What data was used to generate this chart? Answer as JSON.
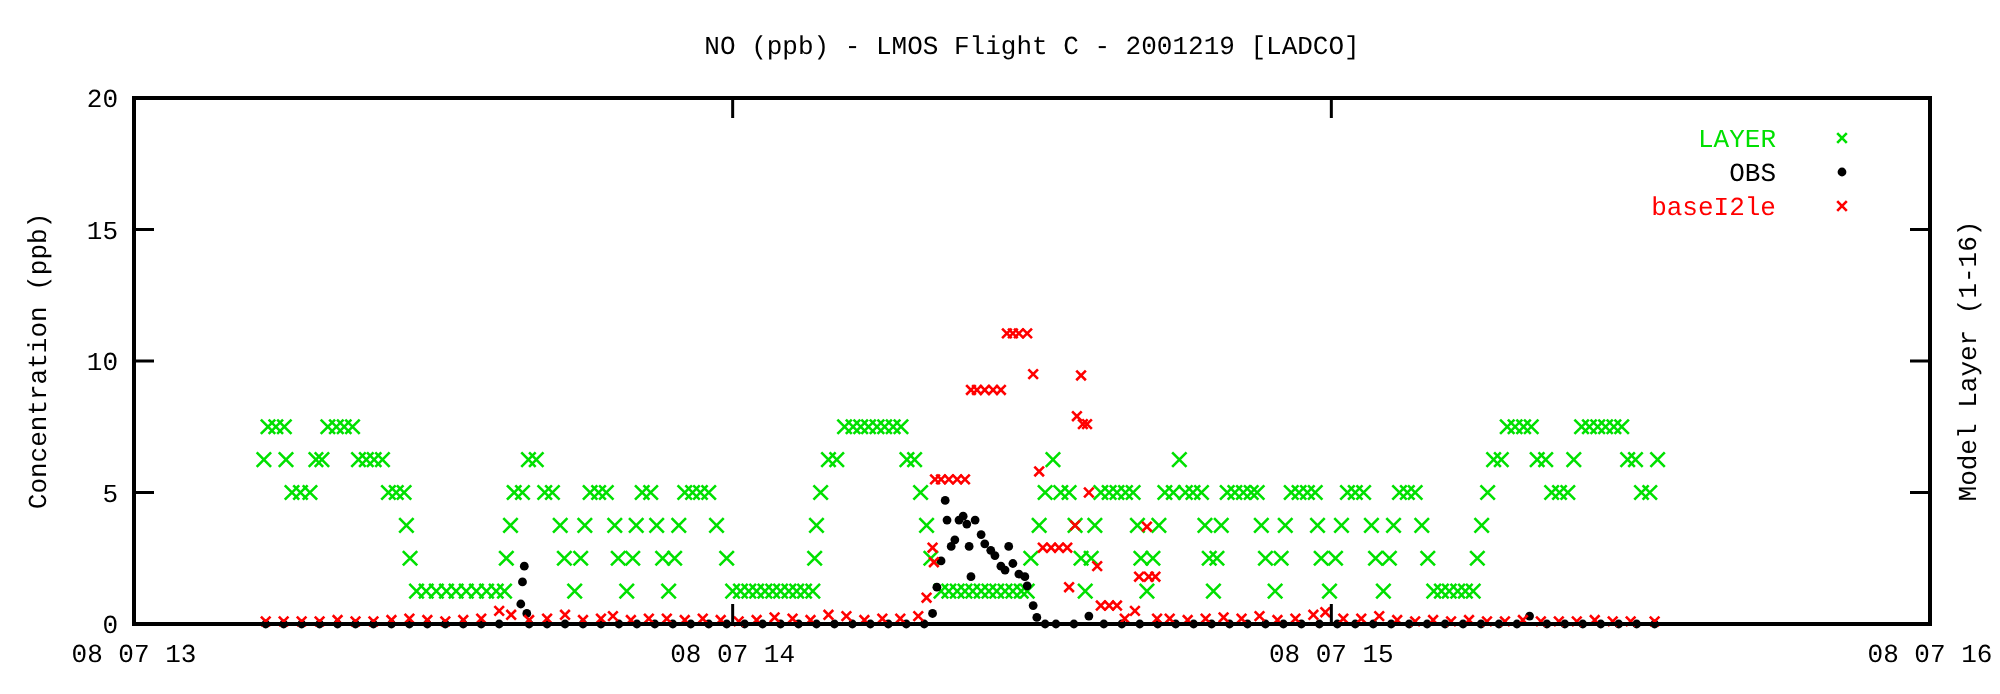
{
  "chart_data": {
    "type": "scatter",
    "title": "NO (ppb) - LMOS Flight C - 2001219 [LADCO]",
    "ylabel": "Concentration (ppb)",
    "y2label": "Model Layer (1-16)",
    "xlim": [
      "2001-08-07T13:00",
      "2001-08-07T16:00"
    ],
    "xticks": [
      {
        "value": "2001-08-07T13:00",
        "label": "08 07 13"
      },
      {
        "value": "2001-08-07T14:00",
        "label": "08 07 14"
      },
      {
        "value": "2001-08-07T15:00",
        "label": "08 07 15"
      },
      {
        "value": "2001-08-07T16:00",
        "label": "08 07 16"
      }
    ],
    "ylim": [
      0,
      20
    ],
    "yticks": [
      0,
      5,
      10,
      15,
      20
    ],
    "legend": "top right",
    "series": [
      {
        "name": "LAYER",
        "color": "#00e000",
        "marker": "cross",
        "x": [
          "2001-08-07T13:13:01",
          "2001-08-07T13:13:26",
          "2001-08-07T13:14:13",
          "2001-08-07T13:15:04",
          "2001-08-07T13:15:14",
          "2001-08-07T13:15:50",
          "2001-08-07T13:16:41",
          "2001-08-07T13:17:38",
          "2001-08-07T13:18:14",
          "2001-08-07T13:18:50",
          "2001-08-07T13:19:26",
          "2001-08-07T13:20:17",
          "2001-08-07T13:21:04",
          "2001-08-07T13:21:54",
          "2001-08-07T13:22:30",
          "2001-08-07T13:23:17",
          "2001-08-07T13:24:04",
          "2001-08-07T13:24:54",
          "2001-08-07T13:25:30",
          "2001-08-07T13:26:17",
          "2001-08-07T13:27:04",
          "2001-08-07T13:27:18",
          "2001-08-07T13:27:40",
          "2001-08-07T13:28:19",
          "2001-08-07T13:29:17",
          "2001-08-07T13:30:18",
          "2001-08-07T13:31:19",
          "2001-08-07T13:32:17",
          "2001-08-07T13:33:18",
          "2001-08-07T13:34:19",
          "2001-08-07T13:35:20",
          "2001-08-07T13:36:18",
          "2001-08-07T13:37:08",
          "2001-08-07T13:37:19",
          "2001-08-07T13:37:44",
          "2001-08-07T13:38:06",
          "2001-08-07T13:38:56",
          "2001-08-07T13:39:32",
          "2001-08-07T13:40:19",
          "2001-08-07T13:41:10",
          "2001-08-07T13:41:56",
          "2001-08-07T13:42:43",
          "2001-08-07T13:43:08",
          "2001-08-07T13:44:10",
          "2001-08-07T13:44:46",
          "2001-08-07T13:45:11",
          "2001-08-07T13:45:43",
          "2001-08-07T13:46:34",
          "2001-08-07T13:47:20",
          "2001-08-07T13:48:11",
          "2001-08-07T13:48:32",
          "2001-08-07T13:49:23",
          "2001-08-07T13:49:59",
          "2001-08-07T13:50:20",
          "2001-08-07T13:50:56",
          "2001-08-07T13:51:47",
          "2001-08-07T13:52:23",
          "2001-08-07T13:52:59",
          "2001-08-07T13:53:35",
          "2001-08-07T13:54:11",
          "2001-08-07T13:54:36",
          "2001-08-07T13:55:12",
          "2001-08-07T13:55:59",
          "2001-08-07T13:56:46",
          "2001-08-07T13:57:36",
          "2001-08-07T13:58:23",
          "2001-08-07T13:59:24",
          "2001-08-07T14:00:00",
          "2001-08-07T14:00:47",
          "2001-08-07T14:01:37",
          "2001-08-07T14:02:24",
          "2001-08-07T14:03:14",
          "2001-08-07T14:04:01",
          "2001-08-07T14:04:48",
          "2001-08-07T14:05:38",
          "2001-08-07T14:06:25",
          "2001-08-07T14:07:12",
          "2001-08-07T14:08:02",
          "2001-08-07T14:08:13",
          "2001-08-07T14:08:24",
          "2001-08-07T14:08:49",
          "2001-08-07T14:09:36",
          "2001-08-07T14:10:26",
          "2001-08-07T14:11:13",
          "2001-08-07T14:12:04",
          "2001-08-07T14:12:50",
          "2001-08-07T14:13:37",
          "2001-08-07T14:14:28",
          "2001-08-07T14:15:14",
          "2001-08-07T14:16:05",
          "2001-08-07T14:16:52",
          "2001-08-07T14:17:28",
          "2001-08-07T14:18:14",
          "2001-08-07T14:18:50",
          "2001-08-07T14:19:26",
          "2001-08-07T14:19:52",
          "2001-08-07T14:20:53",
          "2001-08-07T14:21:40",
          "2001-08-07T14:22:30",
          "2001-08-07T14:23:17",
          "2001-08-07T14:24:04",
          "2001-08-07T14:24:54",
          "2001-08-07T14:25:41",
          "2001-08-07T14:26:28",
          "2001-08-07T14:27:18",
          "2001-08-07T14:28:05",
          "2001-08-07T14:28:55",
          "2001-08-07T14:29:31",
          "2001-08-07T14:29:53",
          "2001-08-07T14:30:43",
          "2001-08-07T14:31:19",
          "2001-08-07T14:32:06",
          "2001-08-07T14:32:53",
          "2001-08-07T14:33:43",
          "2001-08-07T14:34:19",
          "2001-08-07T14:34:55",
          "2001-08-07T14:35:20",
          "2001-08-07T14:35:56",
          "2001-08-07T14:36:18",
          "2001-08-07T14:36:54",
          "2001-08-07T14:37:44",
          "2001-08-07T14:38:31",
          "2001-08-07T14:39:22",
          "2001-08-07T14:40:08",
          "2001-08-07T14:40:34",
          "2001-08-07T14:40:55",
          "2001-08-07T14:41:31",
          "2001-08-07T14:42:07",
          "2001-08-07T14:42:43",
          "2001-08-07T14:43:19",
          "2001-08-07T14:44:10",
          "2001-08-07T14:44:46",
          "2001-08-07T14:45:22",
          "2001-08-07T14:46:08",
          "2001-08-07T14:46:59",
          "2001-08-07T14:47:20",
          "2001-08-07T14:47:46",
          "2001-08-07T14:48:11",
          "2001-08-07T14:48:32",
          "2001-08-07T14:48:58",
          "2001-08-07T14:49:34",
          "2001-08-07T14:50:20",
          "2001-08-07T14:51:11",
          "2001-08-07T14:51:58",
          "2001-08-07T14:52:34",
          "2001-08-07T14:52:59",
          "2001-08-07T14:53:24",
          "2001-08-07T14:54:22",
          "2001-08-07T14:54:58",
          "2001-08-07T14:55:23",
          "2001-08-07T14:55:59",
          "2001-08-07T14:56:46",
          "2001-08-07T14:57:36",
          "2001-08-07T14:58:23",
          "2001-08-07T14:58:37",
          "2001-08-07T14:58:59",
          "2001-08-07T14:59:49",
          "2001-08-07T15:00:25",
          "2001-08-07T15:01:01",
          "2001-08-07T15:01:37",
          "2001-08-07T15:02:24",
          "2001-08-07T15:03:14",
          "2001-08-07T15:04:01",
          "2001-08-07T15:04:26",
          "2001-08-07T15:05:13",
          "2001-08-07T15:05:49",
          "2001-08-07T15:06:14",
          "2001-08-07T15:06:50",
          "2001-08-07T15:07:37",
          "2001-08-07T15:08:24",
          "2001-08-07T15:09:04",
          "2001-08-07T15:09:40",
          "2001-08-07T15:10:16",
          "2001-08-07T15:11:02",
          "2001-08-07T15:11:49",
          "2001-08-07T15:12:40",
          "2001-08-07T15:13:26",
          "2001-08-07T15:14:13",
          "2001-08-07T15:14:38",
          "2001-08-07T15:15:04",
          "2001-08-07T15:15:40",
          "2001-08-07T15:16:16",
          "2001-08-07T15:17:02",
          "2001-08-07T15:17:38",
          "2001-08-07T15:18:25",
          "2001-08-07T15:19:16",
          "2001-08-07T15:20:02",
          "2001-08-07T15:20:38",
          "2001-08-07T15:21:29",
          "2001-08-07T15:22:05",
          "2001-08-07T15:22:52",
          "2001-08-07T15:23:42",
          "2001-08-07T15:24:18",
          "2001-08-07T15:25:05",
          "2001-08-07T15:25:52",
          "2001-08-07T15:26:42",
          "2001-08-07T15:27:29",
          "2001-08-07T15:28:19",
          "2001-08-07T15:29:06",
          "2001-08-07T15:29:42",
          "2001-08-07T15:30:29",
          "2001-08-07T15:31:05",
          "2001-08-07T15:31:55",
          "2001-08-07T15:32:42"
        ],
        "values": [
          6.25,
          7.5,
          7.5,
          7.5,
          6.25,
          5,
          5,
          5,
          6.25,
          6.25,
          7.5,
          7.5,
          7.5,
          7.5,
          6.25,
          6.25,
          6.25,
          6.25,
          5,
          5,
          5,
          3.75,
          2.5,
          1.25,
          1.25,
          1.25,
          1.25,
          1.25,
          1.25,
          1.25,
          1.25,
          1.25,
          1.25,
          2.5,
          3.75,
          5,
          5,
          6.25,
          6.25,
          5,
          5,
          3.75,
          2.5,
          1.25,
          2.5,
          3.75,
          5,
          5,
          5,
          3.75,
          2.5,
          1.25,
          2.5,
          3.75,
          5,
          5,
          3.75,
          2.5,
          1.25,
          2.5,
          3.75,
          5,
          5,
          5,
          5,
          3.75,
          2.5,
          1.25,
          1.25,
          1.25,
          1.25,
          1.25,
          1.25,
          1.25,
          1.25,
          1.25,
          1.25,
          1.25,
          2.5,
          3.75,
          5,
          6.25,
          6.25,
          7.5,
          7.5,
          7.5,
          7.5,
          7.5,
          7.5,
          7.5,
          7.5,
          6.25,
          6.25,
          5,
          3.75,
          2.5,
          1.25,
          1.25,
          1.25,
          1.25,
          1.25,
          1.25,
          1.25,
          1.25,
          1.25,
          1.25,
          1.25,
          1.25,
          2.5,
          3.75,
          5,
          6.25,
          5,
          5,
          3.75,
          2.5,
          1.25,
          2.5,
          3.75,
          5,
          5,
          5,
          5,
          5,
          3.75,
          2.5,
          1.25,
          2.5,
          3.75,
          5,
          5,
          6.25,
          5,
          5,
          5,
          3.75,
          2.5,
          1.25,
          2.5,
          3.75,
          5,
          5,
          5,
          5,
          5,
          3.75,
          2.5,
          1.25,
          2.5,
          3.75,
          5,
          5,
          5,
          5,
          3.75,
          2.5,
          1.25,
          2.5,
          3.75,
          5,
          5,
          5,
          3.75,
          2.5,
          1.25,
          2.5,
          3.75,
          5,
          5,
          5,
          3.75,
          2.5,
          1.25,
          1.25,
          1.25,
          1.25,
          1.25,
          1.25,
          2.5,
          3.75,
          5,
          6.25,
          6.25,
          7.5,
          7.5,
          7.5,
          7.5,
          6.25,
          6.25,
          5,
          5,
          5,
          6.25,
          7.5,
          7.5,
          7.5,
          7.5,
          7.5,
          7.5,
          6.25,
          6.25,
          5,
          5,
          6.25
        ]
      },
      {
        "name": "OBS",
        "color": "#000000",
        "marker": "circle",
        "x": [
          "2001-08-07T13:13:12",
          "2001-08-07T13:15:00",
          "2001-08-07T13:16:48",
          "2001-08-07T13:18:36",
          "2001-08-07T13:20:24",
          "2001-08-07T13:22:12",
          "2001-08-07T13:24:00",
          "2001-08-07T13:25:48",
          "2001-08-07T13:27:36",
          "2001-08-07T13:29:24",
          "2001-08-07T13:31:12",
          "2001-08-07T13:33:00",
          "2001-08-07T13:34:48",
          "2001-08-07T13:36:36",
          "2001-08-07T13:38:46",
          "2001-08-07T13:38:56",
          "2001-08-07T13:39:07",
          "2001-08-07T13:39:22",
          "2001-08-07T13:39:36",
          "2001-08-07T13:41:24",
          "2001-08-07T13:43:12",
          "2001-08-07T13:45:00",
          "2001-08-07T13:46:48",
          "2001-08-07T13:48:36",
          "2001-08-07T13:50:24",
          "2001-08-07T13:52:12",
          "2001-08-07T13:54:00",
          "2001-08-07T13:55:48",
          "2001-08-07T13:57:36",
          "2001-08-07T13:59:24",
          "2001-08-07T14:01:12",
          "2001-08-07T14:03:00",
          "2001-08-07T14:04:48",
          "2001-08-07T14:06:36",
          "2001-08-07T14:08:24",
          "2001-08-07T14:10:12",
          "2001-08-07T14:12:00",
          "2001-08-07T14:13:48",
          "2001-08-07T14:15:36",
          "2001-08-07T14:17:24",
          "2001-08-07T14:19:12",
          "2001-08-07T14:20:02",
          "2001-08-07T14:20:28",
          "2001-08-07T14:20:53",
          "2001-08-07T14:21:18",
          "2001-08-07T14:21:29",
          "2001-08-07T14:21:54",
          "2001-08-07T14:22:16",
          "2001-08-07T14:22:41",
          "2001-08-07T14:23:06",
          "2001-08-07T14:23:28",
          "2001-08-07T14:23:42",
          "2001-08-07T14:23:53",
          "2001-08-07T14:24:18",
          "2001-08-07T14:24:54",
          "2001-08-07T14:25:16",
          "2001-08-07T14:25:52",
          "2001-08-07T14:26:17",
          "2001-08-07T14:26:53",
          "2001-08-07T14:27:18",
          "2001-08-07T14:27:40",
          "2001-08-07T14:28:05",
          "2001-08-07T14:28:41",
          "2001-08-07T14:29:17",
          "2001-08-07T14:29:31",
          "2001-08-07T14:30:07",
          "2001-08-07T14:30:29",
          "2001-08-07T14:31:19",
          "2001-08-07T14:32:24",
          "2001-08-07T14:34:12",
          "2001-08-07T14:35:42",
          "2001-08-07T14:37:12",
          "2001-08-07T14:39:00",
          "2001-08-07T14:40:48",
          "2001-08-07T14:42:36",
          "2001-08-07T14:44:24",
          "2001-08-07T14:46:12",
          "2001-08-07T14:48:00",
          "2001-08-07T14:49:48",
          "2001-08-07T14:51:36",
          "2001-08-07T14:53:24",
          "2001-08-07T14:55:12",
          "2001-08-07T14:57:00",
          "2001-08-07T14:58:48",
          "2001-08-07T15:00:36",
          "2001-08-07T15:02:24",
          "2001-08-07T15:04:12",
          "2001-08-07T15:06:00",
          "2001-08-07T15:07:48",
          "2001-08-07T15:09:36",
          "2001-08-07T15:11:24",
          "2001-08-07T15:13:12",
          "2001-08-07T15:15:00",
          "2001-08-07T15:16:48",
          "2001-08-07T15:18:36",
          "2001-08-07T15:19:52",
          "2001-08-07T15:21:36",
          "2001-08-07T15:23:24",
          "2001-08-07T15:25:12",
          "2001-08-07T15:27:00",
          "2001-08-07T15:28:48",
          "2001-08-07T15:30:36",
          "2001-08-07T15:32:24"
        ],
        "values": [
          0,
          0,
          0,
          0,
          0,
          0,
          0,
          0,
          0,
          0,
          0,
          0,
          0,
          0,
          0.76,
          1.6,
          2.2,
          0.4,
          0,
          0,
          0,
          0,
          0,
          0,
          0,
          0,
          0,
          0,
          0,
          0,
          0,
          0,
          0,
          0,
          0,
          0,
          0,
          0,
          0,
          0,
          0,
          0.4,
          1.4,
          2.4,
          4.7,
          3.95,
          2.95,
          3.2,
          3.95,
          4.1,
          3.8,
          2.95,
          1.8,
          3.95,
          3.4,
          3.05,
          2.8,
          2.6,
          2.2,
          2.05,
          2.95,
          2.3,
          1.9,
          1.8,
          1.45,
          0.7,
          0.25,
          0,
          0,
          0,
          0.3,
          0,
          0,
          0,
          0,
          0,
          0,
          0,
          0,
          0,
          0,
          0,
          0,
          0,
          0,
          0,
          0,
          0,
          0,
          0,
          0,
          0,
          0,
          0,
          0,
          0.3,
          0,
          0,
          0,
          0,
          0,
          0,
          0
        ]
      },
      {
        "name": "baseI2le",
        "color": "#ff0000",
        "marker": "cross",
        "x": [
          "2001-08-07T13:13:12",
          "2001-08-07T13:15:00",
          "2001-08-07T13:16:48",
          "2001-08-07T13:18:36",
          "2001-08-07T13:20:24",
          "2001-08-07T13:22:12",
          "2001-08-07T13:24:00",
          "2001-08-07T13:25:48",
          "2001-08-07T13:27:36",
          "2001-08-07T13:29:24",
          "2001-08-07T13:31:12",
          "2001-08-07T13:33:00",
          "2001-08-07T13:34:48",
          "2001-08-07T13:36:36",
          "2001-08-07T13:37:48",
          "2001-08-07T13:39:36",
          "2001-08-07T13:41:24",
          "2001-08-07T13:43:12",
          "2001-08-07T13:45:00",
          "2001-08-07T13:46:48",
          "2001-08-07T13:48:00",
          "2001-08-07T13:49:48",
          "2001-08-07T13:51:36",
          "2001-08-07T13:53:24",
          "2001-08-07T13:55:12",
          "2001-08-07T13:57:00",
          "2001-08-07T13:58:48",
          "2001-08-07T14:00:36",
          "2001-08-07T14:02:24",
          "2001-08-07T14:04:12",
          "2001-08-07T14:06:00",
          "2001-08-07T14:07:48",
          "2001-08-07T14:09:36",
          "2001-08-07T14:11:24",
          "2001-08-07T14:13:12",
          "2001-08-07T14:15:00",
          "2001-08-07T14:16:48",
          "2001-08-07T14:18:36",
          "2001-08-07T14:19:26",
          "2001-08-07T14:20:02",
          "2001-08-07T14:20:10",
          "2001-08-07T14:20:17",
          "2001-08-07T14:20:53",
          "2001-08-07T14:21:40",
          "2001-08-07T14:22:30",
          "2001-08-07T14:23:17",
          "2001-08-07T14:23:53",
          "2001-08-07T14:24:29",
          "2001-08-07T14:25:16",
          "2001-08-07T14:26:06",
          "2001-08-07T14:26:53",
          "2001-08-07T14:27:29",
          "2001-08-07T14:28:05",
          "2001-08-07T14:28:41",
          "2001-08-07T14:29:31",
          "2001-08-07T14:30:07",
          "2001-08-07T14:30:43",
          "2001-08-07T14:31:05",
          "2001-08-07T14:31:55",
          "2001-08-07T14:32:42",
          "2001-08-07T14:33:32",
          "2001-08-07T14:33:43",
          "2001-08-07T14:34:19",
          "2001-08-07T14:34:30",
          "2001-08-07T14:34:55",
          "2001-08-07T14:35:06",
          "2001-08-07T14:35:31",
          "2001-08-07T14:35:42",
          "2001-08-07T14:36:32",
          "2001-08-07T14:36:54",
          "2001-08-07T14:37:44",
          "2001-08-07T14:38:31",
          "2001-08-07T14:39:18",
          "2001-08-07T14:40:19",
          "2001-08-07T14:40:44",
          "2001-08-07T14:41:31",
          "2001-08-07T14:41:42",
          "2001-08-07T14:42:22",
          "2001-08-07T14:42:32",
          "2001-08-07T14:43:48",
          "2001-08-07T14:45:36",
          "2001-08-07T14:47:24",
          "2001-08-07T14:49:12",
          "2001-08-07T14:51:00",
          "2001-08-07T14:52:48",
          "2001-08-07T14:54:36",
          "2001-08-07T14:56:24",
          "2001-08-07T14:58:12",
          "2001-08-07T14:59:24",
          "2001-08-07T15:01:12",
          "2001-08-07T15:03:00",
          "2001-08-07T15:04:48",
          "2001-08-07T15:06:36",
          "2001-08-07T15:08:24",
          "2001-08-07T15:10:12",
          "2001-08-07T15:12:00",
          "2001-08-07T15:13:48",
          "2001-08-07T15:15:36",
          "2001-08-07T15:17:24",
          "2001-08-07T15:19:12",
          "2001-08-07T15:21:00",
          "2001-08-07T15:22:48",
          "2001-08-07T15:24:36",
          "2001-08-07T15:26:24",
          "2001-08-07T15:28:12",
          "2001-08-07T15:30:00",
          "2001-08-07T15:32:24"
        ],
        "values": [
          0.1,
          0.1,
          0.1,
          0.1,
          0.15,
          0.1,
          0.1,
          0.15,
          0.2,
          0.15,
          0.1,
          0.15,
          0.2,
          0.5,
          0.35,
          0.15,
          0.2,
          0.35,
          0.15,
          0.2,
          0.3,
          0.15,
          0.2,
          0.2,
          0.15,
          0.2,
          0.15,
          0.1,
          0.15,
          0.25,
          0.2,
          0.15,
          0.35,
          0.3,
          0.15,
          0.2,
          0.2,
          0.3,
          1.0,
          2.9,
          2.35,
          5.5,
          5.5,
          5.5,
          5.5,
          5.5,
          8.9,
          8.9,
          8.9,
          8.9,
          8.9,
          11.05,
          11.05,
          11.05,
          11.05,
          9.5,
          5.8,
          2.9,
          2.9,
          2.9,
          2.9,
          1.4,
          3.75,
          7.9,
          9.45,
          7.6,
          7.6,
          5.0,
          2.2,
          0.7,
          0.7,
          0.7,
          0.2,
          0.5,
          1.8,
          3.7,
          1.8,
          1.8,
          0.2,
          0.2,
          0.15,
          0.2,
          0.25,
          0.2,
          0.3,
          0.15,
          0.2,
          0.35,
          0.45,
          0.2,
          0.2,
          0.3,
          0.15,
          0.1,
          0.15,
          0.1,
          0.15,
          0.1,
          0.1,
          0.15,
          0.1,
          0.1,
          0.1,
          0.15,
          0.1,
          0.1,
          0.1
        ]
      }
    ]
  }
}
